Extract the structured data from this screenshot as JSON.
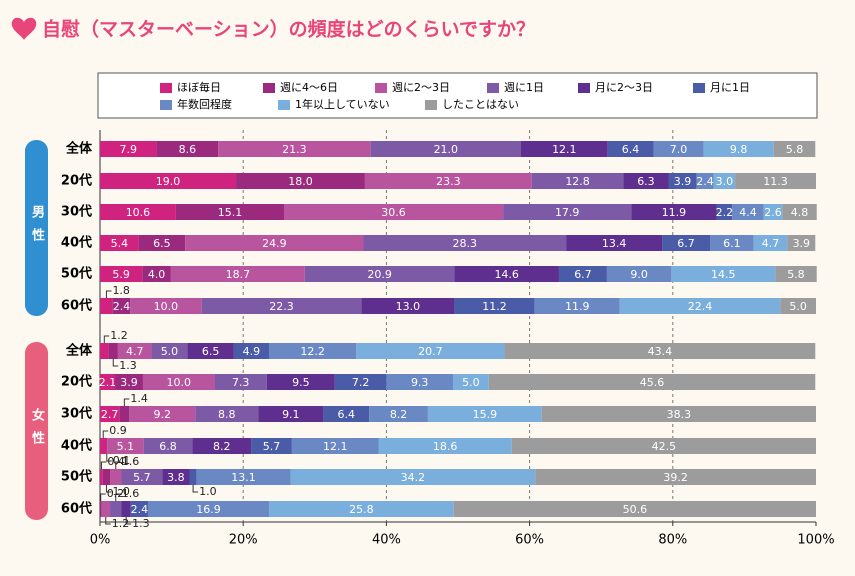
{
  "chart_data": {
    "type": "stacked_barh",
    "title": "自慰（マスターベーション）の頻度はどのくらいですか？",
    "groups": [
      "男性",
      "女性"
    ],
    "categories": [
      "全体",
      "20代",
      "30代",
      "40代",
      "50代",
      "60代",
      "全体",
      "20代",
      "30代",
      "40代",
      "50代",
      "60代"
    ],
    "series": [
      {
        "name": "ほぼ毎日",
        "color": "#d0237f",
        "values": [
          7.9,
          19.0,
          10.6,
          5.4,
          5.9,
          1.8,
          1.2,
          2.1,
          2.7,
          0.9,
          0.4,
          null
        ],
        "value_labels": [
          "7.9",
          "19.0",
          "10.6",
          "5.4",
          "5.9",
          "1.8",
          "1.2",
          "2.1",
          "2.7",
          "0.9",
          "0.4",
          null
        ]
      },
      {
        "name": "週に4～6日",
        "color": "#9b2a7f",
        "values": [
          8.6,
          18.0,
          15.1,
          6.5,
          4.0,
          2.4,
          1.3,
          3.9,
          1.4,
          0.1,
          1.0,
          0.2
        ],
        "value_labels": [
          "8.6",
          "18.0",
          "15.1",
          "6.5",
          "4.0",
          "2.4",
          "1.3",
          "3.9",
          "1.4",
          "0.1",
          "1.0",
          "0.2"
        ]
      },
      {
        "name": "週に2～3日",
        "color": "#b9549f",
        "values": [
          21.3,
          23.3,
          30.6,
          24.9,
          18.7,
          10.0,
          4.7,
          10.0,
          9.2,
          5.1,
          1.6,
          1.2
        ],
        "value_labels": [
          "21.3",
          "23.3",
          "30.6",
          "24.9",
          "18.7",
          "10.0",
          "4.7",
          "10.0",
          "9.2",
          "5.1",
          "1.6",
          "1.2"
        ]
      },
      {
        "name": "週に1日",
        "color": "#7d5aa6",
        "values": [
          21.0,
          12.8,
          17.9,
          28.3,
          20.9,
          22.3,
          5.0,
          7.3,
          8.8,
          6.8,
          5.7,
          1.6
        ],
        "value_labels": [
          "21.0",
          "12.8",
          "17.9",
          "28.3",
          "20.9",
          "22.3",
          "5.0",
          "7.3",
          "8.8",
          "6.8",
          "5.7",
          "1.6"
        ]
      },
      {
        "name": "月に2～3日",
        "color": "#5e2f8e",
        "values": [
          12.1,
          6.3,
          11.9,
          13.4,
          14.6,
          13.0,
          6.5,
          9.5,
          9.1,
          8.2,
          3.8,
          1.3
        ],
        "value_labels": [
          "12.1",
          "6.3",
          "11.9",
          "13.4",
          "14.6",
          "13.0",
          "6.5",
          "9.5",
          "9.1",
          "8.2",
          "3.8",
          "1.3"
        ]
      },
      {
        "name": "月に1日",
        "color": "#4a5ba8",
        "values": [
          6.4,
          3.9,
          2.2,
          6.7,
          6.7,
          11.2,
          4.9,
          7.2,
          6.4,
          5.7,
          1.0,
          2.4
        ],
        "value_labels": [
          "6.4",
          "3.9",
          "2.2",
          "6.7",
          "6.7",
          "11.2",
          "4.9",
          "7.2",
          "6.4",
          "5.7",
          "1.0",
          "2.4"
        ]
      },
      {
        "name": "年数回程度",
        "color": "#6a88c4",
        "values": [
          7.0,
          2.4,
          4.4,
          6.1,
          9.0,
          11.9,
          12.2,
          9.3,
          8.2,
          12.1,
          13.1,
          16.9
        ],
        "value_labels": [
          "7.0",
          "2.4",
          "4.4",
          "6.1",
          "9.0",
          "11.9",
          "12.2",
          "9.3",
          "8.2",
          "12.1",
          "13.1",
          "16.9"
        ]
      },
      {
        "name": "1年以上していない",
        "color": "#7aaedc",
        "values": [
          9.8,
          3.0,
          2.6,
          4.7,
          14.5,
          22.4,
          20.7,
          5.0,
          15.9,
          18.6,
          34.2,
          25.8
        ],
        "value_labels": [
          "9.8",
          "3.0",
          "2.6",
          "4.7",
          "14.5",
          "22.4",
          "20.7",
          "5.0",
          "15.9",
          "18.6",
          "34.2",
          "25.8"
        ]
      },
      {
        "name": "したことはない",
        "color": "#9c9c9c",
        "values": [
          5.8,
          11.3,
          4.8,
          3.9,
          5.8,
          5.0,
          43.4,
          45.6,
          38.3,
          42.5,
          39.2,
          50.6
        ],
        "value_labels": [
          "5.8",
          "11.3",
          "4.8",
          "3.9",
          "5.8",
          "5.0",
          "43.4",
          "45.6",
          "38.3",
          "42.5",
          "39.2",
          "50.6"
        ]
      }
    ],
    "xlim": [
      0,
      100
    ],
    "xticks": [
      {
        "value": 0,
        "label": "0%"
      },
      {
        "value": 20,
        "label": "20%"
      },
      {
        "value": 40,
        "label": "40%"
      },
      {
        "value": 60,
        "label": "60%"
      },
      {
        "value": 80,
        "label": "80%"
      },
      {
        "value": 100,
        "label": "100%"
      }
    ],
    "grid": true
  }
}
